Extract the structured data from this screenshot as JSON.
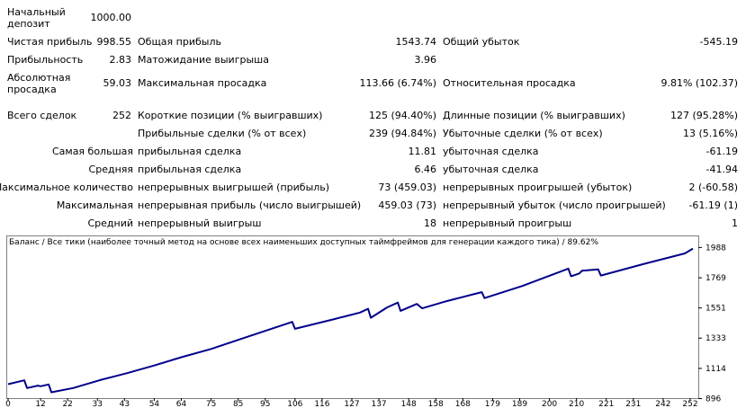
{
  "report": {
    "rows": [
      {
        "c1": "Начальный\nдепозит",
        "v1": "1000.00",
        "c2": "",
        "v2": "",
        "c3": "",
        "v3": ""
      },
      {
        "c1": "Чистая прибыль",
        "v1": "998.55",
        "c2": "Общая прибыль",
        "v2": "1543.74",
        "c3": "Общий убыток",
        "v3": "-545.19"
      },
      {
        "c1": "Прибыльность",
        "v1": "2.83",
        "c2": "Матожидание выигрыша",
        "v2": "3.96",
        "c3": "",
        "v3": ""
      },
      {
        "c1": "Абсолютная\nпросадка",
        "v1": "59.03",
        "c2": "Максимальная просадка",
        "v2": "113.66 (6.74%)",
        "c3": "Относительная просадка",
        "v3": "9.81% (102.37)"
      },
      {
        "c1": "Всего сделок",
        "v1": "252",
        "c2": "Короткие позиции (% выигравших)",
        "v2": "125 (94.40%)",
        "c3": "Длинные позиции (% выигравших)",
        "v3": "127 (95.28%)"
      },
      {
        "c1": "",
        "v1": "",
        "c2": "Прибыльные сделки (% от всех)",
        "v2": "239 (94.84%)",
        "c3": "Убыточные сделки (% от всех)",
        "v3": "13 (5.16%)"
      },
      {
        "c1": "Самая большая",
        "v1": "",
        "c2": "прибыльная сделка",
        "v2": "11.81",
        "c3": "убыточная сделка",
        "v3": "-61.19"
      },
      {
        "c1": "Средняя",
        "v1": "",
        "c2": "прибыльная сделка",
        "v2": "6.46",
        "c3": "убыточная сделка",
        "v3": "-41.94"
      },
      {
        "c1": "Максимальное количество",
        "v1": "",
        "c2": "непрерывных выигрышей (прибыль)",
        "v2": "73 (459.03)",
        "c3": "непрерывных проигрышей (убыток)",
        "v3": "2 (-60.58)"
      },
      {
        "c1": "Максимальная",
        "v1": "",
        "c2": "непрерывная прибыль (число выигрышей)",
        "v2": "459.03 (73)",
        "c3": "непрерывный убыток (число проигрышей)",
        "v3": "-61.19 (1)"
      },
      {
        "c1": "Средний",
        "v1": "",
        "c2": "непрерывный выигрыш",
        "v2": "18",
        "c3": "непрерывный проигрыш",
        "v3": "1"
      }
    ]
  },
  "chart_data": {
    "type": "line",
    "title": "Баланс / Все тики (наиболее точный метод на основе всех наименьших доступных таймфреймов для генерации каждого тика) / 89.62%",
    "xlabel": "",
    "ylabel": "",
    "xlim": [
      0,
      255
    ],
    "ylim": [
      880,
      2010
    ],
    "x_ticks": [
      0,
      12,
      22,
      33,
      43,
      54,
      64,
      75,
      85,
      95,
      106,
      116,
      127,
      137,
      148,
      158,
      168,
      179,
      189,
      200,
      210,
      221,
      231,
      242,
      252
    ],
    "y_ticks": [
      896,
      1114,
      1333,
      1551,
      1769,
      1988
    ],
    "grid": false,
    "legend": "none",
    "line_color": "#00008b",
    "series": [
      {
        "name": "",
        "x": [
          0,
          6,
          7,
          11,
          12,
          15,
          16,
          24,
          34,
          44,
          54,
          64,
          75,
          85,
          95,
          105,
          106,
          108,
          120,
          130,
          133,
          134,
          140,
          144,
          145,
          151,
          153,
          162,
          172,
          175,
          176,
          190,
          207,
          208,
          211,
          212,
          218,
          219,
          235,
          250,
          253
        ],
        "values": [
          1000,
          1028,
          972,
          990,
          985,
          998,
          942,
          972,
          1030,
          1080,
          1135,
          1195,
          1255,
          1320,
          1385,
          1450,
          1400,
          1410,
          1468,
          1518,
          1545,
          1480,
          1555,
          1590,
          1530,
          1580,
          1548,
          1600,
          1650,
          1665,
          1622,
          1710,
          1835,
          1780,
          1800,
          1820,
          1830,
          1785,
          1870,
          1945,
          1980
        ]
      }
    ]
  }
}
